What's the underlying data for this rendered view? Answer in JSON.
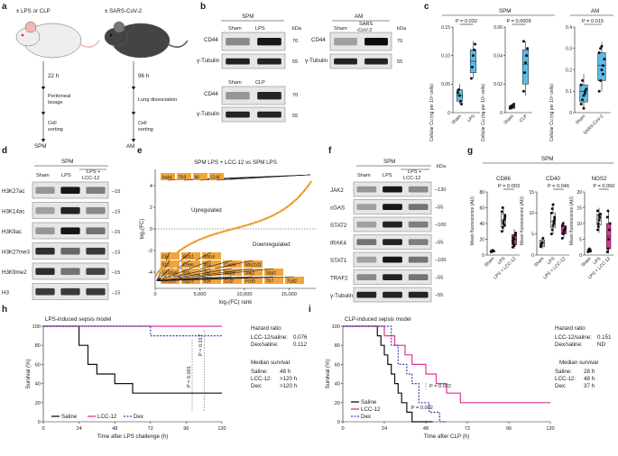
{
  "panels": {
    "a": {
      "letter": "a",
      "left_label": "± LPS or CLP",
      "left_time": "22 h",
      "left_step1": [
        "Peritoneal",
        "lavage"
      ],
      "left_step2": [
        "Cell",
        "sorting"
      ],
      "left_out": "SPM",
      "right_label": "± SARS-CoV-2",
      "right_time": "96 h",
      "right_step1": [
        "Lung dissociation"
      ],
      "right_step2": [
        "Cell",
        "sorting"
      ],
      "right_out": "AM"
    },
    "b": {
      "letter": "b",
      "spm": "SPM",
      "am": "AM",
      "kda": "kDa",
      "lanes_top": [
        "Sham",
        "LPS"
      ],
      "lanes_bottom": [
        "Sham",
        "CLP"
      ],
      "lanes_am": [
        "Sham",
        "SARS",
        "-CoV-2"
      ],
      "rows": [
        "CD44",
        "γ-Tubulin"
      ],
      "markers": [
        "70",
        "55"
      ]
    },
    "c": {
      "letter": "c",
      "spm": "SPM",
      "am": "AM",
      "ylabel": "Cellular Cu (ng per 10⁴ cells)"
    },
    "d": {
      "letter": "d",
      "group": "SPM",
      "lanes": [
        "Sham",
        "LPS",
        "LPS +",
        "LCC-12"
      ],
      "rows": [
        "H3K27ac",
        "H3K14ac",
        "H3K9ac",
        "H3K27me3",
        "H3K9me2",
        "H3"
      ],
      "marker": "15"
    },
    "e": {
      "letter": "e",
      "title": "SPM LPS + LCC-12 vs SPM LPS",
      "up": "Upregulated",
      "down": "Downregulated",
      "top_genes": [
        "Irak4",
        "Tlr3",
        "Il6",
        "Ccl6"
      ],
      "bottom_genes": [
        [
          "Clu",
          "Gch1",
          "Ifitm3"
        ],
        [
          "Il10",
          "Crem",
          "Ifit3",
          "Cxcl9",
          "Mb21d1"
        ],
        [
          "S100a8",
          "Il1b",
          "Tnf",
          "Nlrp3",
          "Jak2",
          "Stat1"
        ],
        [
          "Cxcl10",
          "Isg15",
          "Il18",
          "Ccl2",
          "Fcnb",
          "Tlr7",
          "Traf2"
        ]
      ]
    },
    "f": {
      "letter": "f",
      "group": "SPM",
      "lanes": [
        "Sham",
        "LPS",
        "LPS +",
        "LCC-12"
      ],
      "rows": [
        "JAK2",
        "cGAS",
        "STAT2",
        "IRAK4",
        "STAT1",
        "TRAF2",
        "γ-Tubulin"
      ],
      "markers": [
        "130",
        "55",
        "100",
        "55",
        "100",
        "55",
        "55"
      ],
      "kda": "kDa"
    },
    "g": {
      "letter": "g",
      "group": "SPM",
      "ylabel": "Mean fluorescence (AU)",
      "xcats": [
        "Sham",
        "LPS",
        "LPS + LCC-12"
      ]
    },
    "h": {
      "letter": "h",
      "title": "LPS-induced sepsis model",
      "hr_title": "Hazard ratio",
      "hr_rows": [
        [
          "LCC-12/saline:",
          "0.076"
        ],
        [
          "Dex/saline:",
          "0.112"
        ]
      ],
      "ms_title": "Median survival",
      "ms_rows": [
        [
          "Saline:",
          "48 h"
        ],
        [
          "LCC-12:",
          ">120 h"
        ],
        [
          "Dex:",
          ">120 h"
        ]
      ],
      "p_labels": [
        "P = 0.001",
        "P = 0.017"
      ]
    },
    "i": {
      "letter": "i",
      "title": "CLP-induced sepsis model",
      "hr_title": "Hazard ratio",
      "hr_rows": [
        [
          "LCC-12/saline:",
          "0.151"
        ],
        [
          "Dex/saline:",
          "ND"
        ]
      ],
      "ms_title": "Median survival",
      "ms_rows": [
        [
          "Saline:",
          "28 h"
        ],
        [
          "LCC-12:",
          "48 h"
        ],
        [
          "Dex:",
          "37 h"
        ]
      ],
      "p_labels": [
        "P = 0.002",
        "P = 0.022"
      ]
    },
    "legend": [
      "Saline",
      "LCC-12",
      "Dex"
    ]
  },
  "colors": {
    "lcc12": "#e0329a",
    "dex": "#3b45b0",
    "saline": "#111111",
    "box": "#5bbde6",
    "orange": "#f0a43a"
  },
  "chart_data": [
    {
      "id": "c-spm-lps",
      "type": "box",
      "panel": "c",
      "group": "SPM",
      "ylabel": "Cellular Cu (ng per 10⁴ cells)",
      "ylim": [
        0,
        0.15
      ],
      "yticks": [
        "0",
        "0.05",
        "0.10",
        "0.15"
      ],
      "categories": [
        "Sham",
        "LPS"
      ],
      "p_label": "P = 0.032",
      "points": [
        [
          0.035,
          0.04,
          0.03,
          0.02,
          0.015
        ],
        [
          0.06,
          0.08,
          0.1,
          0.11,
          0.12
        ]
      ],
      "boxes": [
        [
          0.015,
          0.02,
          0.03,
          0.04,
          0.05
        ],
        [
          0.06,
          0.07,
          0.09,
          0.11,
          0.125
        ]
      ]
    },
    {
      "id": "c-spm-clp",
      "type": "box",
      "panel": "c",
      "group": "SPM",
      "ylim": [
        0,
        0.06
      ],
      "yticks": [
        "0",
        "0.02",
        "0.04",
        "0.06"
      ],
      "categories": [
        "Sham",
        "CLP"
      ],
      "p_label": "P = 0.0009",
      "points": [
        [
          0.003,
          0.004,
          0.005,
          0.004,
          0.006
        ],
        [
          0.015,
          0.028,
          0.035,
          0.04,
          0.045,
          0.05
        ]
      ],
      "boxes": [
        [
          0.002,
          0.003,
          0.004,
          0.005,
          0.006
        ],
        [
          0.012,
          0.02,
          0.034,
          0.044,
          0.05
        ]
      ]
    },
    {
      "id": "c-am-sars",
      "type": "box",
      "panel": "c",
      "group": "AM",
      "ylim": [
        0,
        0.4
      ],
      "yticks": [
        "0",
        "0.1",
        "0.2",
        "0.3",
        "0.4"
      ],
      "categories": [
        "Sham",
        "SARS-CoV-2"
      ],
      "p_label": "P = 0.015",
      "points": [
        [
          0.04,
          0.06,
          0.08,
          0.1,
          0.11,
          0.13,
          0.15,
          0.02,
          0.09
        ],
        [
          0.1,
          0.15,
          0.2,
          0.22,
          0.25,
          0.28,
          0.3,
          0.31,
          0.18
        ]
      ],
      "boxes": [
        [
          0.02,
          0.05,
          0.1,
          0.13,
          0.18
        ],
        [
          0.1,
          0.15,
          0.22,
          0.28,
          0.33
        ]
      ]
    },
    {
      "id": "e-rank",
      "type": "scatter",
      "panel": "e",
      "title": "SPM LPS + LCC-12 vs SPM LPS",
      "xlabel": "log₂(FC) rank",
      "ylabel": "log₂(FC)",
      "xlim": [
        0,
        18000
      ],
      "ylim": [
        -5.5,
        5.5
      ],
      "xticks": [
        "0",
        "5,000",
        "10,000",
        "15,000"
      ],
      "yticks": [
        "4",
        "2",
        "0",
        "-2",
        "-4"
      ]
    },
    {
      "id": "g-cd86",
      "type": "box",
      "panel": "g",
      "title": "CD86",
      "p_label": "P = 0.003",
      "ylim": [
        0,
        80
      ],
      "yticks": [
        "0",
        "20",
        "40",
        "60",
        "80"
      ],
      "categories": [
        "Sham",
        "LPS",
        "LPS + LCC-12"
      ],
      "points": [
        [
          4,
          5,
          6,
          5
        ],
        [
          30,
          35,
          40,
          45,
          50,
          55,
          60,
          42,
          38,
          48
        ],
        [
          10,
          15,
          20,
          25,
          28,
          18,
          22,
          12
        ]
      ],
      "boxes": [
        [
          3,
          4,
          5,
          6,
          7
        ],
        [
          30,
          36,
          44,
          52,
          62
        ],
        [
          8,
          13,
          20,
          26,
          33
        ]
      ]
    },
    {
      "id": "g-cd40",
      "type": "box",
      "panel": "g",
      "title": "CD40",
      "p_label": "P = 0.046",
      "ylim": [
        0,
        15
      ],
      "yticks": [
        "0",
        "5",
        "10",
        "15"
      ],
      "categories": [
        "Sham",
        "LPS",
        "LPS + LCC-12"
      ],
      "points": [
        [
          2,
          2.5,
          3,
          4
        ],
        [
          5,
          6,
          7,
          8,
          9,
          10,
          11,
          12,
          7.5,
          8.5
        ],
        [
          4,
          5,
          5.5,
          6,
          6.5,
          7,
          7.5
        ]
      ],
      "boxes": [
        [
          1.5,
          2,
          2.8,
          3.6,
          4.2
        ],
        [
          5,
          6.5,
          8,
          10,
          12
        ],
        [
          4,
          5,
          6,
          7,
          8
        ]
      ]
    },
    {
      "id": "g-nos2",
      "type": "box",
      "panel": "g",
      "title": "NOS2",
      "p_label": "P = 0.050",
      "ylim": [
        0,
        20
      ],
      "yticks": [
        "0",
        "5",
        "10",
        "15",
        "20"
      ],
      "categories": [
        "Sham",
        "LPS",
        "LPS + LCC-12"
      ],
      "points": [
        [
          1,
          1.5,
          2,
          1.2
        ],
        [
          8,
          10,
          11,
          12,
          13,
          14,
          9,
          12.5
        ],
        [
          1,
          2,
          5,
          8,
          10,
          12,
          14
        ]
      ],
      "boxes": [
        [
          0.8,
          1,
          1.5,
          1.8,
          2.2
        ],
        [
          7,
          9.5,
          11.5,
          13,
          15
        ],
        [
          0.5,
          2,
          6,
          10,
          14
        ]
      ]
    },
    {
      "id": "h-survival",
      "type": "line",
      "panel": "h",
      "xlabel": "Time after LPS challenge (h)",
      "ylabel": "Survival (%)",
      "xlim": [
        0,
        120
      ],
      "ylim": [
        0,
        100
      ],
      "xticks": [
        "0",
        "24",
        "48",
        "72",
        "96",
        "120"
      ],
      "yticks": [
        "0",
        "20",
        "40",
        "60",
        "80",
        "100"
      ],
      "series": [
        {
          "name": "Saline",
          "color": "#111111",
          "dash": false,
          "steps": [
            [
              0,
              100
            ],
            [
              24,
              100
            ],
            [
              24,
              80
            ],
            [
              30,
              80
            ],
            [
              30,
              60
            ],
            [
              36,
              60
            ],
            [
              36,
              50
            ],
            [
              48,
              50
            ],
            [
              48,
              40
            ],
            [
              60,
              40
            ],
            [
              60,
              30
            ],
            [
              120,
              30
            ]
          ]
        },
        {
          "name": "LCC-12",
          "color": "#e0329a",
          "dash": false,
          "steps": [
            [
              0,
              100
            ],
            [
              120,
              100
            ]
          ]
        },
        {
          "name": "Dex",
          "color": "#3b45b0",
          "dash": true,
          "steps": [
            [
              0,
              100
            ],
            [
              72,
              100
            ],
            [
              72,
              90
            ],
            [
              120,
              90
            ]
          ]
        }
      ]
    },
    {
      "id": "i-survival",
      "type": "line",
      "panel": "i",
      "xlabel": "Time after CLP (h)",
      "ylabel": "Survival (%)",
      "xlim": [
        0,
        120
      ],
      "ylim": [
        0,
        100
      ],
      "xticks": [
        "0",
        "24",
        "48",
        "72",
        "96",
        "120"
      ],
      "yticks": [
        "0",
        "20",
        "40",
        "60",
        "80",
        "100"
      ],
      "series": [
        {
          "name": "Saline",
          "color": "#111111",
          "dash": false,
          "steps": [
            [
              0,
              100
            ],
            [
              20,
              100
            ],
            [
              20,
              90
            ],
            [
              22,
              90
            ],
            [
              22,
              80
            ],
            [
              24,
              80
            ],
            [
              24,
              70
            ],
            [
              26,
              70
            ],
            [
              26,
              60
            ],
            [
              28,
              60
            ],
            [
              28,
              50
            ],
            [
              30,
              50
            ],
            [
              30,
              40
            ],
            [
              32,
              40
            ],
            [
              32,
              30
            ],
            [
              34,
              30
            ],
            [
              34,
              20
            ],
            [
              37,
              20
            ],
            [
              37,
              10
            ],
            [
              40,
              10
            ],
            [
              40,
              0
            ],
            [
              52,
              0
            ]
          ]
        },
        {
          "name": "LCC-12",
          "color": "#e0329a",
          "dash": false,
          "steps": [
            [
              0,
              100
            ],
            [
              24,
              100
            ],
            [
              24,
              90
            ],
            [
              30,
              90
            ],
            [
              30,
              80
            ],
            [
              36,
              80
            ],
            [
              36,
              70
            ],
            [
              40,
              70
            ],
            [
              40,
              60
            ],
            [
              48,
              60
            ],
            [
              48,
              50
            ],
            [
              54,
              50
            ],
            [
              54,
              40
            ],
            [
              60,
              40
            ],
            [
              60,
              30
            ],
            [
              68,
              30
            ],
            [
              68,
              20
            ],
            [
              120,
              20
            ]
          ]
        },
        {
          "name": "Dex",
          "color": "#3b45b0",
          "dash": true,
          "steps": [
            [
              0,
              100
            ],
            [
              28,
              100
            ],
            [
              28,
              80
            ],
            [
              32,
              80
            ],
            [
              32,
              60
            ],
            [
              37,
              60
            ],
            [
              37,
              50
            ],
            [
              40,
              50
            ],
            [
              40,
              40
            ],
            [
              44,
              40
            ],
            [
              44,
              20
            ],
            [
              50,
              20
            ],
            [
              50,
              10
            ],
            [
              56,
              10
            ],
            [
              56,
              0
            ],
            [
              60,
              0
            ]
          ]
        }
      ]
    }
  ]
}
